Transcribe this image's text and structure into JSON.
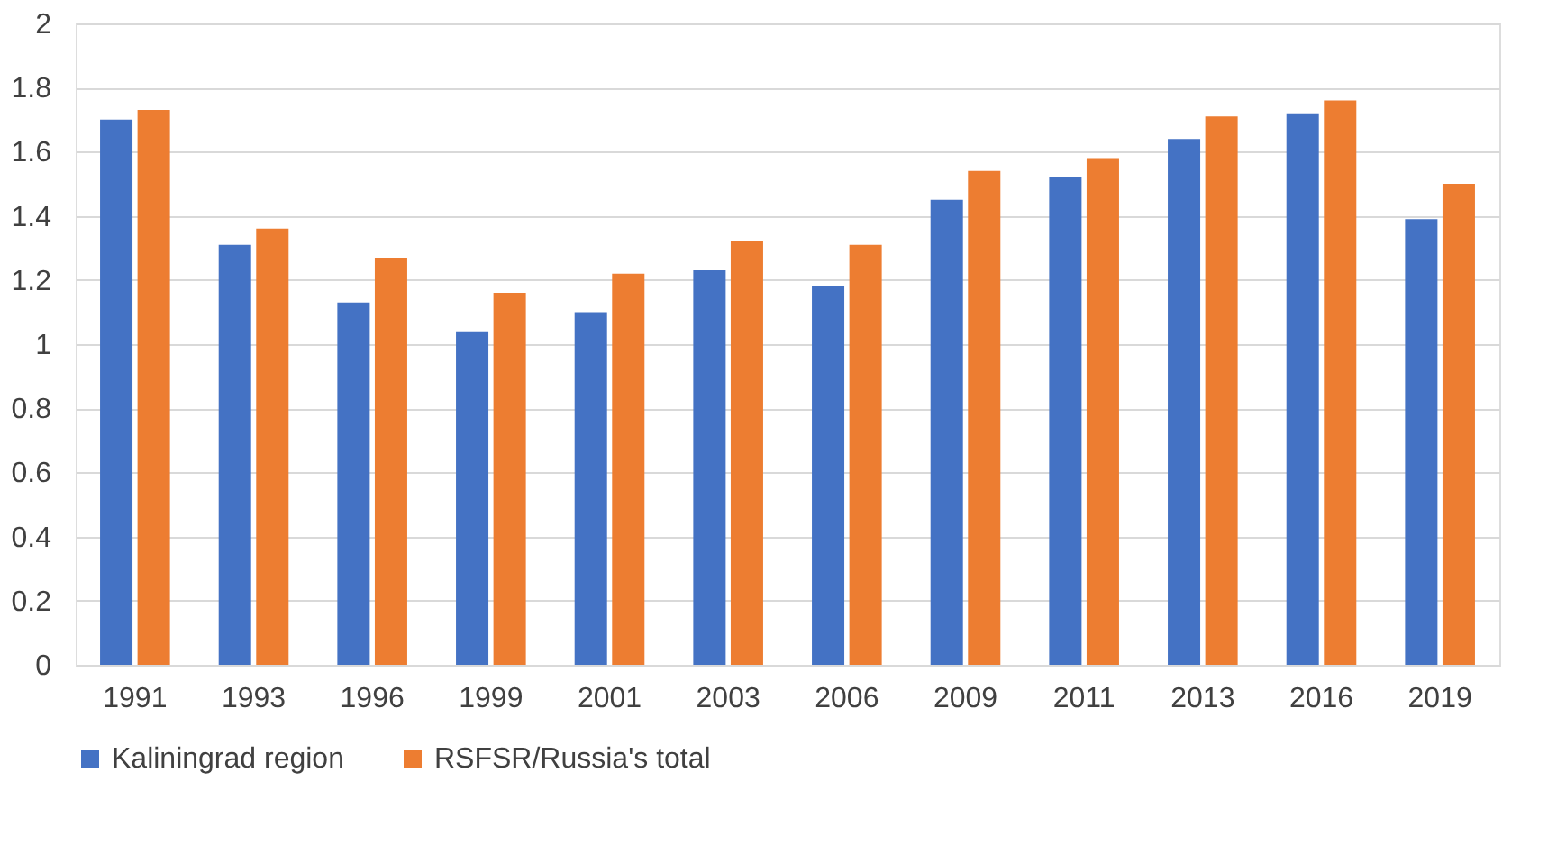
{
  "chart_data": {
    "type": "bar",
    "categories": [
      "1991",
      "1993",
      "1996",
      "1999",
      "2001",
      "2003",
      "2006",
      "2009",
      "2011",
      "2013",
      "2016",
      "2019"
    ],
    "series": [
      {
        "name": "Kaliningrad region",
        "color": "#4472c4",
        "values": [
          1.7,
          1.31,
          1.13,
          1.04,
          1.1,
          1.23,
          1.18,
          1.45,
          1.52,
          1.64,
          1.72,
          1.39
        ]
      },
      {
        "name": "RSFSR/Russia's total",
        "color": "#ed7d31",
        "values": [
          1.73,
          1.36,
          1.27,
          1.16,
          1.22,
          1.32,
          1.31,
          1.54,
          1.58,
          1.71,
          1.76,
          1.5
        ]
      }
    ],
    "ylim": [
      0,
      2
    ],
    "yticks": [
      0,
      0.2,
      0.4,
      0.6,
      0.8,
      1,
      1.2,
      1.4,
      1.6,
      1.8,
      2
    ],
    "grid": "y",
    "legend": "bottom"
  }
}
